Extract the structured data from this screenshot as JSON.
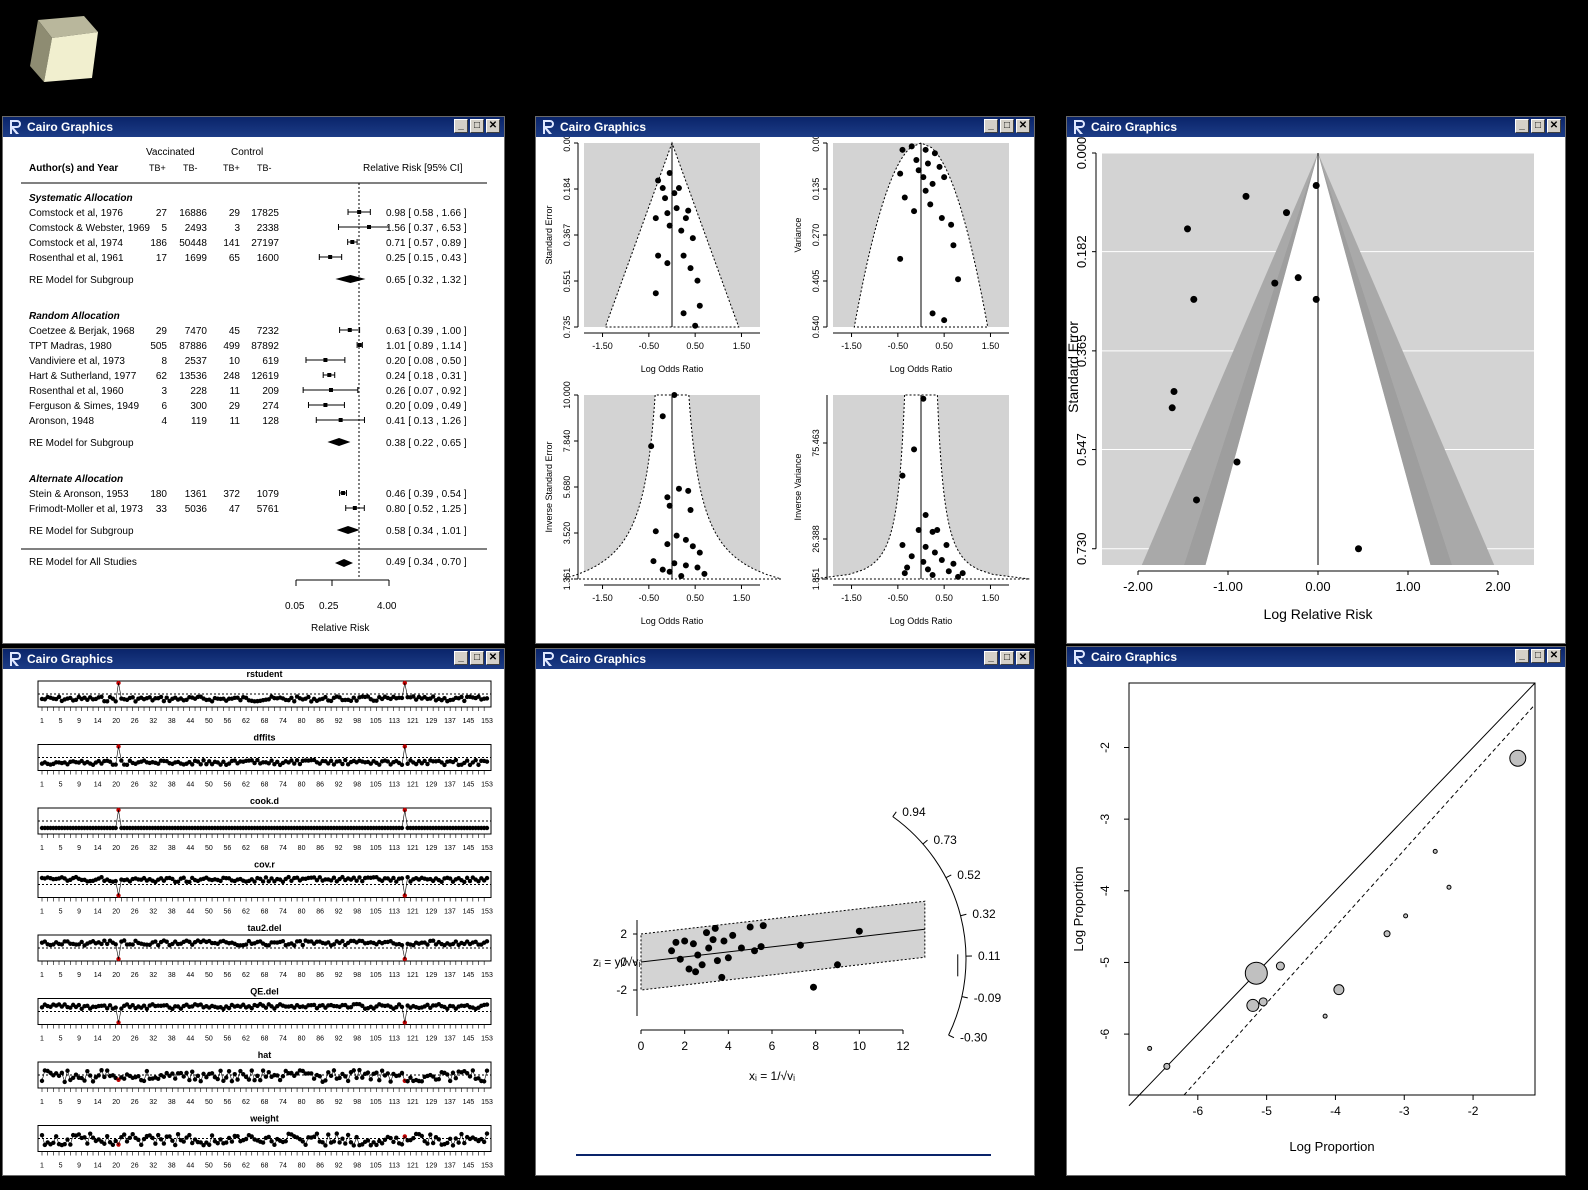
{
  "window_title": "Cairo Graphics",
  "forest": {
    "header": {
      "vaccinated": "Vaccinated",
      "control": "Control",
      "author": "Author(s) and Year",
      "tbp": "TB+",
      "tbm": "TB-",
      "rr": "Relative Risk [95% CI]"
    },
    "groups": [
      {
        "label": "Systematic Allocation",
        "studies": [
          {
            "name": "Comstock et al, 1976",
            "tpos": "27",
            "tneg": "16886",
            "cpos": "29",
            "cneg": "17825",
            "ci": "0.98 [ 0.58 , 1.66 ]"
          },
          {
            "name": "Comstock & Webster, 1969",
            "tpos": "5",
            "tneg": "2493",
            "cpos": "3",
            "cneg": "2338",
            "ci": "1.56 [ 0.37 , 6.53 ]"
          },
          {
            "name": "Comstock et al, 1974",
            "tpos": "186",
            "tneg": "50448",
            "cpos": "141",
            "cneg": "27197",
            "ci": "0.71 [ 0.57 , 0.89 ]"
          },
          {
            "name": "Rosenthal et al, 1961",
            "tpos": "17",
            "tneg": "1699",
            "cpos": "65",
            "cneg": "1600",
            "ci": "0.25 [ 0.15 , 0.43 ]"
          }
        ],
        "re_label": "RE Model for Subgroup",
        "re_ci": "0.65 [ 0.32 , 1.32 ]"
      },
      {
        "label": "Random Allocation",
        "studies": [
          {
            "name": "Coetzee & Berjak, 1968",
            "tpos": "29",
            "tneg": "7470",
            "cpos": "45",
            "cneg": "7232",
            "ci": "0.63 [ 0.39 , 1.00 ]"
          },
          {
            "name": "TPT Madras, 1980",
            "tpos": "505",
            "tneg": "87886",
            "cpos": "499",
            "cneg": "87892",
            "ci": "1.01 [ 0.89 , 1.14 ]"
          },
          {
            "name": "Vandiviere et al, 1973",
            "tpos": "8",
            "tneg": "2537",
            "cpos": "10",
            "cneg": "619",
            "ci": "0.20 [ 0.08 , 0.50 ]"
          },
          {
            "name": "Hart & Sutherland, 1977",
            "tpos": "62",
            "tneg": "13536",
            "cpos": "248",
            "cneg": "12619",
            "ci": "0.24 [ 0.18 , 0.31 ]"
          },
          {
            "name": "Rosenthal et al, 1960",
            "tpos": "3",
            "tneg": "228",
            "cpos": "11",
            "cneg": "209",
            "ci": "0.26 [ 0.07 , 0.92 ]"
          },
          {
            "name": "Ferguson & Simes, 1949",
            "tpos": "6",
            "tneg": "300",
            "cpos": "29",
            "cneg": "274",
            "ci": "0.20 [ 0.09 , 0.49 ]"
          },
          {
            "name": "Aronson, 1948",
            "tpos": "4",
            "tneg": "119",
            "cpos": "11",
            "cneg": "128",
            "ci": "0.41 [ 0.13 , 1.26 ]"
          }
        ],
        "re_label": "RE Model for Subgroup",
        "re_ci": "0.38 [ 0.22 , 0.65 ]"
      },
      {
        "label": "Alternate Allocation",
        "studies": [
          {
            "name": "Stein & Aronson, 1953",
            "tpos": "180",
            "tneg": "1361",
            "cpos": "372",
            "cneg": "1079",
            "ci": "0.46 [ 0.39 , 0.54 ]"
          },
          {
            "name": "Frimodt-Moller et al, 1973",
            "tpos": "33",
            "tneg": "5036",
            "cpos": "47",
            "cneg": "5761",
            "ci": "0.80 [ 0.52 , 1.25 ]"
          }
        ],
        "re_label": "RE Model for Subgroup",
        "re_ci": "0.58 [ 0.34 , 1.01 ]"
      }
    ],
    "overall_label": "RE Model for All Studies",
    "overall_ci": "0.49 [ 0.34 , 0.70 ]",
    "xticks": [
      "0.05",
      "0.25",
      "4.00"
    ],
    "xlabel": "Relative Risk"
  },
  "chart_data": [
    {
      "type": "scatter",
      "id": "funnel-1",
      "xlabel": "Log Odds Ratio",
      "ylabel": "Standard Error",
      "xticks": [
        "-1.50",
        "-0.50",
        "0.50",
        "1.50"
      ],
      "yticks": [
        "0.00",
        "0.184",
        "0.367",
        "0.551",
        "0.735"
      ],
      "xlim": [
        -1.9,
        1.9
      ],
      "ylim": [
        0,
        0.735
      ],
      "center": 0,
      "points": [
        [
          -0.3,
          0.15
        ],
        [
          -0.05,
          0.12
        ],
        [
          0.05,
          0.2
        ],
        [
          0.15,
          0.18
        ],
        [
          -0.35,
          0.3
        ],
        [
          -0.15,
          0.22
        ],
        [
          0.1,
          0.26
        ],
        [
          0.3,
          0.3
        ],
        [
          -0.05,
          0.33
        ],
        [
          0.2,
          0.35
        ],
        [
          0.45,
          0.38
        ],
        [
          -0.3,
          0.45
        ],
        [
          -0.1,
          0.48
        ],
        [
          0.25,
          0.45
        ],
        [
          0.4,
          0.5
        ],
        [
          0.55,
          0.55
        ],
        [
          -0.35,
          0.6
        ],
        [
          0.6,
          0.65
        ],
        [
          0.25,
          0.68
        ],
        [
          0.5,
          0.73
        ],
        [
          -0.1,
          0.28
        ],
        [
          0.35,
          0.27
        ],
        [
          -0.2,
          0.18
        ]
      ]
    },
    {
      "type": "scatter",
      "id": "funnel-2",
      "xlabel": "Log Odds Ratio",
      "ylabel": "Variance",
      "xticks": [
        "-1.50",
        "-0.50",
        "0.50",
        "1.50"
      ],
      "yticks": [
        "0.00",
        "0.135",
        "0.270",
        "0.405",
        "0.540"
      ],
      "xlim": [
        -1.9,
        1.9
      ],
      "ylim": [
        0,
        0.54
      ],
      "center": 0,
      "points": [
        [
          -0.4,
          0.02
        ],
        [
          -0.2,
          0.01
        ],
        [
          0.1,
          0.02
        ],
        [
          0.3,
          0.03
        ],
        [
          -0.1,
          0.05
        ],
        [
          0.15,
          0.06
        ],
        [
          0.4,
          0.07
        ],
        [
          -0.45,
          0.09
        ],
        [
          0.05,
          0.1
        ],
        [
          0.25,
          0.12
        ],
        [
          0.5,
          0.1
        ],
        [
          -0.35,
          0.16
        ],
        [
          -0.15,
          0.2
        ],
        [
          0.2,
          0.18
        ],
        [
          0.45,
          0.22
        ],
        [
          0.65,
          0.24
        ],
        [
          0.7,
          0.3
        ],
        [
          -0.45,
          0.34
        ],
        [
          0.8,
          0.4
        ],
        [
          0.25,
          0.5
        ],
        [
          0.5,
          0.52
        ],
        [
          -0.05,
          0.08
        ],
        [
          0.1,
          0.14
        ]
      ]
    },
    {
      "type": "scatter",
      "id": "funnel-3",
      "xlabel": "Log Odds Ratio",
      "ylabel": "Inverse Standard Error",
      "xticks": [
        "-1.50",
        "-0.50",
        "0.50",
        "1.50"
      ],
      "yticks": [
        "1.361",
        "3.520",
        "5.680",
        "7.840",
        "10.000"
      ],
      "xlim": [
        -1.9,
        1.9
      ],
      "ylim": [
        1.361,
        10
      ],
      "center": 0,
      "points": [
        [
          0.05,
          10
        ],
        [
          -0.2,
          9
        ],
        [
          -0.45,
          7.6
        ],
        [
          0.15,
          5.6
        ],
        [
          -0.1,
          5.2
        ],
        [
          0.35,
          5.5
        ],
        [
          -0.05,
          4.8
        ],
        [
          0.4,
          4.6
        ],
        [
          -0.35,
          3.6
        ],
        [
          0.1,
          3.4
        ],
        [
          0.3,
          3.2
        ],
        [
          -0.1,
          3
        ],
        [
          0.45,
          2.9
        ],
        [
          0.6,
          2.6
        ],
        [
          -0.4,
          2.2
        ],
        [
          0.05,
          2.1
        ],
        [
          0.3,
          2.0
        ],
        [
          0.55,
          1.9
        ],
        [
          -0.2,
          1.8
        ],
        [
          0.7,
          1.6
        ],
        [
          0.2,
          1.5
        ],
        [
          -0.05,
          1.7
        ]
      ]
    },
    {
      "type": "scatter",
      "id": "funnel-4",
      "xlabel": "Log Odds Ratio",
      "ylabel": "Inverse Variance",
      "xticks": [
        "-1.50",
        "-0.50",
        "0.50",
        "1.50"
      ],
      "yticks": [
        "1.851",
        "26.388",
        "75.463"
      ],
      "xlim": [
        -1.9,
        1.9
      ],
      "ylim": [
        1.851,
        100
      ],
      "center": 0,
      "points": [
        [
          0.05,
          98
        ],
        [
          -0.15,
          71
        ],
        [
          -0.4,
          57
        ],
        [
          0.1,
          36
        ],
        [
          -0.05,
          28
        ],
        [
          0.25,
          27
        ],
        [
          0.35,
          28
        ],
        [
          -0.4,
          20
        ],
        [
          0.1,
          19
        ],
        [
          0.3,
          16
        ],
        [
          0.55,
          20
        ],
        [
          -0.2,
          14
        ],
        [
          0.05,
          11
        ],
        [
          0.45,
          12
        ],
        [
          0.7,
          10
        ],
        [
          -0.3,
          8
        ],
        [
          0.15,
          7
        ],
        [
          0.6,
          6
        ],
        [
          0.9,
          5
        ],
        [
          -0.35,
          5
        ],
        [
          0.25,
          4
        ],
        [
          0.8,
          3
        ]
      ]
    },
    {
      "type": "scatter",
      "id": "contour-funnel",
      "xlabel": "Log Relative Risk",
      "ylabel": "Standard Error",
      "xticks": [
        "-2.00",
        "-1.00",
        "0.00",
        "1.00",
        "2.00"
      ],
      "yticks": [
        "0.000",
        "0.182",
        "0.365",
        "0.547",
        "0.730"
      ],
      "xlim": [
        -2.4,
        2.4
      ],
      "ylim": [
        0,
        0.76
      ],
      "center": 0,
      "points": [
        [
          -0.02,
          0.06
        ],
        [
          -0.8,
          0.08
        ],
        [
          -1.45,
          0.14
        ],
        [
          -0.35,
          0.11
        ],
        [
          -0.22,
          0.23
        ],
        [
          -0.48,
          0.24
        ],
        [
          -0.02,
          0.27
        ],
        [
          -1.38,
          0.27
        ],
        [
          -1.6,
          0.44
        ],
        [
          -1.62,
          0.47
        ],
        [
          -0.9,
          0.57
        ],
        [
          -1.35,
          0.64
        ],
        [
          0.45,
          0.73
        ]
      ]
    },
    {
      "type": "scatter",
      "id": "radial",
      "xlabel": "xᵢ = 1/√vᵢ",
      "ylabel": "zᵢ = yᵢ/√vᵢ",
      "xticks": [
        "0",
        "2",
        "4",
        "6",
        "8",
        "10",
        "12"
      ],
      "yticks": [
        "-2",
        "0",
        "2"
      ],
      "arc_ticks": [
        "0.94",
        "0.73",
        "0.52",
        "0.32",
        "0.11",
        "-0.09",
        "-0.30"
      ],
      "xlim": [
        0,
        12
      ],
      "ylim": [
        -3,
        3
      ],
      "points": [
        [
          1.4,
          0.8
        ],
        [
          1.6,
          1.4
        ],
        [
          1.8,
          0.2
        ],
        [
          2.0,
          1.5
        ],
        [
          2.2,
          -0.5
        ],
        [
          2.4,
          1.3
        ],
        [
          2.5,
          -0.7
        ],
        [
          2.6,
          0.5
        ],
        [
          2.8,
          -0.2
        ],
        [
          3.0,
          2.1
        ],
        [
          3.1,
          1.0
        ],
        [
          3.3,
          1.6
        ],
        [
          3.4,
          2.4
        ],
        [
          3.5,
          0.1
        ],
        [
          3.7,
          -1.1
        ],
        [
          3.8,
          1.5
        ],
        [
          4.0,
          0.3
        ],
        [
          4.2,
          1.9
        ],
        [
          4.6,
          1.0
        ],
        [
          5.0,
          2.5
        ],
        [
          5.2,
          0.8
        ],
        [
          5.5,
          1.1
        ],
        [
          5.6,
          2.6
        ],
        [
          7.3,
          1.2
        ],
        [
          7.9,
          -1.8
        ],
        [
          9.0,
          -0.2
        ],
        [
          10.0,
          2.2
        ]
      ]
    },
    {
      "type": "scatter",
      "id": "labbe",
      "xlabel": "Log Proportion",
      "ylabel": "Log Proportion",
      "xticks": [
        "-6",
        "-5",
        "-4",
        "-3",
        "-2"
      ],
      "yticks": [
        "-6",
        "-5",
        "-4",
        "-3",
        "-2"
      ],
      "xlim": [
        -7,
        -1.1
      ],
      "ylim": [
        -6.85,
        -1.1
      ],
      "points": [
        [
          -6.7,
          -6.2,
          2
        ],
        [
          -6.45,
          -6.45,
          3
        ],
        [
          -5.2,
          -5.6,
          6
        ],
        [
          -5.15,
          -5.15,
          11
        ],
        [
          -5.05,
          -5.55,
          4
        ],
        [
          -4.8,
          -5.05,
          4
        ],
        [
          -4.15,
          -5.75,
          2
        ],
        [
          -3.95,
          -5.38,
          5
        ],
        [
          -3.25,
          -4.6,
          3
        ],
        [
          -2.98,
          -4.35,
          2
        ],
        [
          -2.55,
          -3.45,
          2
        ],
        [
          -2.35,
          -3.95,
          2
        ],
        [
          -1.35,
          -2.15,
          8
        ]
      ]
    }
  ],
  "influence": {
    "stats": [
      "rstudent",
      "dffits",
      "cook.d",
      "cov.r",
      "tau2.del",
      "QE.del",
      "hat",
      "weight"
    ],
    "xticks": [
      "1",
      "5",
      "9",
      "14",
      "20",
      "26",
      "32",
      "38",
      "44",
      "50",
      "56",
      "62",
      "68",
      "74",
      "80",
      "86",
      "92",
      "98",
      "105",
      "113",
      "121",
      "129",
      "137",
      "145",
      "153"
    ]
  }
}
